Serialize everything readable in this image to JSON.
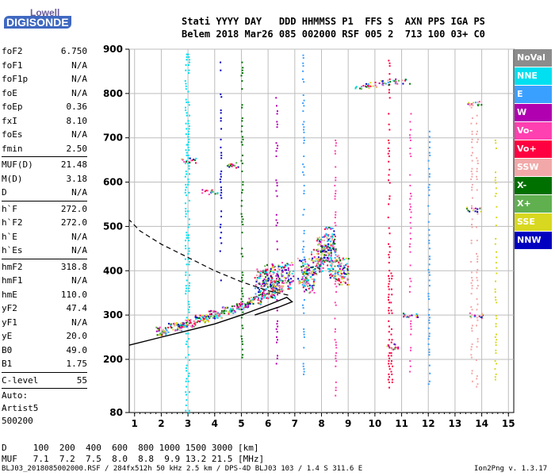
{
  "logo": {
    "line1": "Lowell",
    "line2": "DIGISONDE"
  },
  "header": {
    "labels": "Stati YYYY DAY   DDD HHMMSS P1  FFS S  AXN PPS IGA PS",
    "values": "Belem 2018 Mar26 085 002000 RSF 005 2  713 100 03+ C0"
  },
  "parameters": [
    {
      "name": "foF2",
      "value": "6.750",
      "sep_before": false
    },
    {
      "name": "foF1",
      "value": "N/A",
      "sep_before": false
    },
    {
      "name": "foF1p",
      "value": "N/A",
      "sep_before": false
    },
    {
      "name": "foE",
      "value": "N/A",
      "sep_before": false
    },
    {
      "name": "foEp",
      "value": "0.36",
      "sep_before": false
    },
    {
      "name": "fxI",
      "value": "8.10",
      "sep_before": false
    },
    {
      "name": "foEs",
      "value": "N/A",
      "sep_before": false
    },
    {
      "name": "fmin",
      "value": "2.50",
      "sep_before": false
    },
    {
      "name": "MUF(D)",
      "value": "21.48",
      "sep_before": true
    },
    {
      "name": "M(D)",
      "value": "3.18",
      "sep_before": false
    },
    {
      "name": "D",
      "value": "N/A",
      "sep_before": false
    },
    {
      "name": "h`F",
      "value": "272.0",
      "sep_before": true
    },
    {
      "name": "h`F2",
      "value": "272.0",
      "sep_before": false
    },
    {
      "name": "h`E",
      "value": "N/A",
      "sep_before": false
    },
    {
      "name": "h`Es",
      "value": "N/A",
      "sep_before": false
    },
    {
      "name": "hmF2",
      "value": "318.8",
      "sep_before": true
    },
    {
      "name": "hmF1",
      "value": "N/A",
      "sep_before": false
    },
    {
      "name": "hmE",
      "value": "110.0",
      "sep_before": false
    },
    {
      "name": "yF2",
      "value": "47.4",
      "sep_before": false
    },
    {
      "name": "yF1",
      "value": "N/A",
      "sep_before": false
    },
    {
      "name": "yE",
      "value": "20.0",
      "sep_before": false
    },
    {
      "name": "B0",
      "value": "49.0",
      "sep_before": false
    },
    {
      "name": "B1",
      "value": "1.75",
      "sep_before": false
    },
    {
      "name": "C-level",
      "value": "55",
      "sep_before": true
    }
  ],
  "auto": [
    "Auto:",
    "Artist5",
    "500200"
  ],
  "legend": [
    {
      "label": "NoVal",
      "color": "#8c8c8c"
    },
    {
      "label": "NNE",
      "color": "#00e0f0"
    },
    {
      "label": "E",
      "color": "#3aa0ff"
    },
    {
      "label": "W",
      "color": "#b000b0"
    },
    {
      "label": "Vo-",
      "color": "#ff40b0"
    },
    {
      "label": "Vo+",
      "color": "#ff0040"
    },
    {
      "label": "SSW",
      "color": "#f2a8a8"
    },
    {
      "label": "X-",
      "color": "#007000"
    },
    {
      "label": "X+",
      "color": "#60b050"
    },
    {
      "label": "SSE",
      "color": "#d8d820"
    },
    {
      "label": "NNW",
      "color": "#0000c0"
    }
  ],
  "distance_table": {
    "row1": "D     100  200  400  600  800 1000 1500 3000 [km]",
    "row2": "MUF   7.1  7.2  7.5  8.0  8.8  9.9 13.2 21.5 [MHz]"
  },
  "footer": {
    "left": "BLJ03_2018085002000.RSF / 284fx512h 50 kHz 2.5 km / DPS-4D BLJ03 103 / 1.4 S 311.6 E",
    "right": "Ion2Png v. 1.3.17"
  },
  "chart_data": {
    "type": "scatter",
    "xlabel": "",
    "ylabel": "",
    "xlim": [
      0.8,
      15.2
    ],
    "ylim": [
      80,
      900
    ],
    "x_ticks": [
      1,
      2,
      3,
      4,
      5,
      6,
      7,
      8,
      9,
      10,
      11,
      12,
      13,
      14,
      15
    ],
    "y_ticks": [
      80,
      200,
      300,
      400,
      500,
      600,
      700,
      800,
      900
    ],
    "grid": true,
    "profile_solid": [
      [
        0.8,
        232
      ],
      [
        2,
        250
      ],
      [
        3,
        265
      ],
      [
        4,
        280
      ],
      [
        5,
        300
      ],
      [
        5.8,
        318
      ],
      [
        6.3,
        330
      ],
      [
        6.7,
        340
      ],
      [
        6.9,
        330
      ],
      [
        6.4,
        318
      ],
      [
        5.5,
        300
      ]
    ],
    "profile_dashed": [
      [
        6.75,
        345
      ],
      [
        6.0,
        355
      ],
      [
        5.0,
        375
      ],
      [
        4.0,
        400
      ],
      [
        3.0,
        430
      ],
      [
        2.0,
        460
      ],
      [
        1.2,
        490
      ],
      [
        0.8,
        515
      ]
    ],
    "trace_points": [
      [
        2.0,
        265
      ],
      [
        2.5,
        275
      ],
      [
        3.0,
        283
      ],
      [
        3.5,
        293
      ],
      [
        4.0,
        303
      ],
      [
        4.5,
        313
      ],
      [
        5.0,
        323
      ],
      [
        5.5,
        335
      ],
      [
        6.0,
        348
      ],
      [
        6.3,
        360
      ]
    ],
    "cluster_points": [
      [
        5.7,
        375
      ],
      [
        6.0,
        390
      ],
      [
        6.3,
        385
      ],
      [
        6.7,
        390
      ],
      [
        7.3,
        400
      ],
      [
        7.8,
        420
      ],
      [
        8.2,
        430
      ],
      [
        8.5,
        410
      ],
      [
        8.8,
        400
      ],
      [
        7.5,
        380
      ],
      [
        8.0,
        450
      ],
      [
        8.3,
        470
      ]
    ],
    "sporadic_points": [
      [
        9.5,
        818
      ],
      [
        10.0,
        822
      ],
      [
        10.5,
        826
      ],
      [
        11.0,
        828
      ],
      [
        13.7,
        540
      ],
      [
        13.8,
        300
      ],
      [
        13.7,
        780
      ],
      [
        10.6,
        230
      ],
      [
        11.3,
        300
      ],
      [
        3.0,
        650
      ],
      [
        4.7,
        640
      ],
      [
        3.8,
        580
      ]
    ]
  }
}
